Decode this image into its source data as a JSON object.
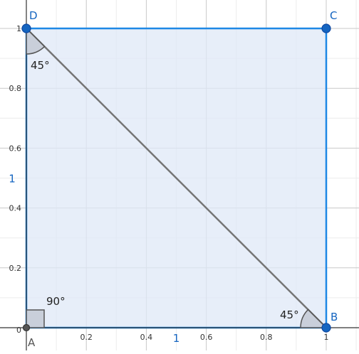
{
  "axes": {
    "x_ticks": [
      "0.2",
      "0.4",
      "0.6",
      "0.8",
      "1"
    ],
    "y_ticks": [
      "0.2",
      "0.4",
      "0.6",
      "0.8",
      "1"
    ],
    "origin_label": "0"
  },
  "points": {
    "A": {
      "label": "A",
      "x": 0,
      "y": 0
    },
    "B": {
      "label": "B",
      "x": 1,
      "y": 0
    },
    "C": {
      "label": "C",
      "x": 1,
      "y": 1
    },
    "D": {
      "label": "D",
      "x": 0,
      "y": 1
    }
  },
  "sides": {
    "bottom": "1",
    "left": "1"
  },
  "angles": {
    "A": "90°",
    "B": "45°",
    "D": "45°"
  },
  "colors": {
    "square_fill": "#dfe8f7",
    "square_stroke": "#1e88e5",
    "point_fill": "#1565c0",
    "diagonal": "#757575",
    "grid_major": "#c8c8c8",
    "grid_minor": "#ececec",
    "angle_fill": "#c5cbd6"
  }
}
